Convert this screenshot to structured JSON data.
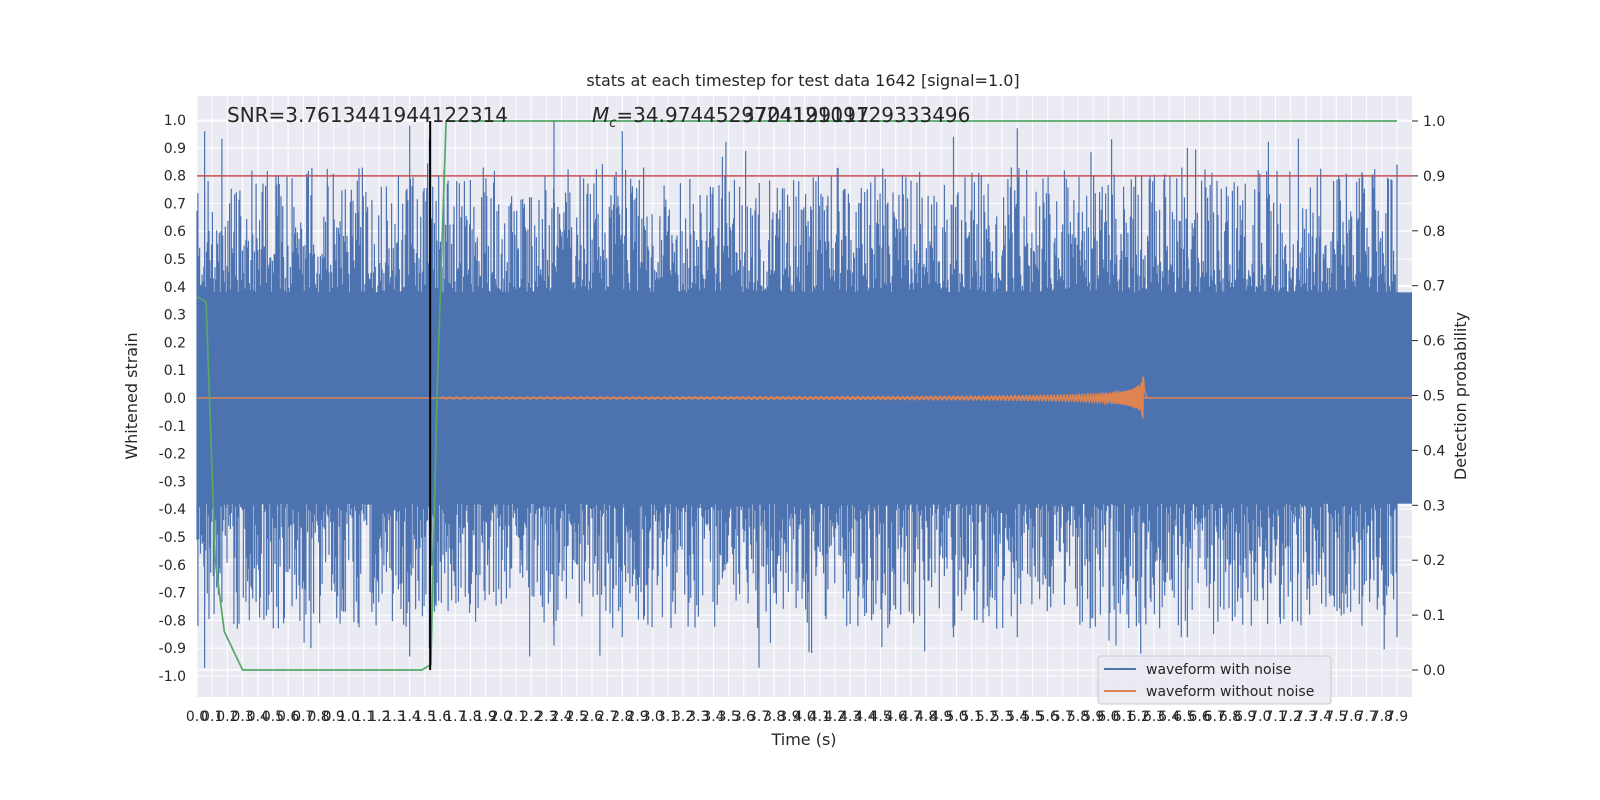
{
  "chart_data": {
    "type": "line",
    "title": "stats at each timestep for test data 1642 [signal=1.0]",
    "xlabel": "Time (s)",
    "ylabel": "Whitened strain",
    "ylabel_right": "Detection probability",
    "annotations": {
      "snr": "SNR=3.7613441944122314",
      "mc_prefix": "M",
      "mc_sub": "c",
      "mc_value": "=34.974452972412109129333496",
      "mc_overlap": "3704199117"
    },
    "xlim": [
      0.0,
      7.9
    ],
    "x_ticks": [
      "0.0",
      "0.1",
      "0.2",
      "0.3",
      "0.4",
      "0.5",
      "0.6",
      "0.7",
      "0.8",
      "0.9",
      "1.0",
      "1.1",
      "1.2",
      "1.3",
      "1.4",
      "1.5",
      "1.6",
      "1.7",
      "1.8",
      "1.9",
      "2.0",
      "2.1",
      "2.2",
      "2.3",
      "2.4",
      "2.5",
      "2.6",
      "2.7",
      "2.8",
      "2.9",
      "3.0",
      "3.1",
      "3.2",
      "3.3",
      "3.4",
      "3.5",
      "3.6",
      "3.7",
      "3.8",
      "3.9",
      "4.0",
      "4.1",
      "4.2",
      "4.3",
      "4.4",
      "4.5",
      "4.6",
      "4.7",
      "4.8",
      "4.9",
      "5.0",
      "5.1",
      "5.2",
      "5.3",
      "5.4",
      "5.5",
      "5.6",
      "5.7",
      "5.8",
      "5.9",
      "6.0",
      "6.1",
      "6.2",
      "6.3",
      "6.4",
      "6.5",
      "6.6",
      "6.7",
      "6.8",
      "6.9",
      "7.0",
      "7.1",
      "7.2",
      "7.3",
      "7.4",
      "7.5",
      "7.6",
      "7.7",
      "7.8",
      "7.9"
    ],
    "ylim": [
      -1.0,
      1.0
    ],
    "y_ticks": [
      "-1.0",
      "-0.9",
      "-0.8",
      "-0.7",
      "-0.6",
      "-0.5",
      "-0.4",
      "-0.3",
      "-0.2",
      "-0.1",
      "0.0",
      "0.1",
      "0.2",
      "0.3",
      "0.4",
      "0.5",
      "0.6",
      "0.7",
      "0.8",
      "0.9",
      "1.0"
    ],
    "ylim_right": [
      0.0,
      1.0
    ],
    "y_ticks_right": [
      "0.0",
      "0.1",
      "0.2",
      "0.3",
      "0.4",
      "0.5",
      "0.6",
      "0.7",
      "0.8",
      "0.9",
      "1.0"
    ],
    "grid": true,
    "legend_position": "lower-right",
    "series": [
      {
        "name": "waveform with noise",
        "color": "#4c72b0",
        "kind": "noise",
        "band_typical": 0.38,
        "peak_max": 0.99,
        "trough_min": -0.97
      },
      {
        "name": "waveform without noise",
        "color": "#dd8452",
        "kind": "chirp",
        "merger_time": 6.23,
        "peak": 0.24,
        "trough": -0.23
      },
      {
        "name": "",
        "color": "#55a868",
        "axis": "right",
        "kind": "probability",
        "x": [
          0.0,
          0.06,
          0.12,
          0.18,
          0.3,
          1.4,
          1.48,
          1.54,
          1.58,
          1.64,
          2.3,
          7.9
        ],
        "y": [
          0.68,
          0.67,
          0.2,
          0.07,
          0.0,
          0.0,
          0.0,
          0.01,
          0.5,
          1.0,
          1.0,
          1.0
        ]
      },
      {
        "name": "",
        "color": "#c44e52",
        "axis": "right",
        "kind": "threshold",
        "y": 0.9
      },
      {
        "name": "",
        "color": "#000000",
        "kind": "vline",
        "x": 1.535
      }
    ]
  }
}
